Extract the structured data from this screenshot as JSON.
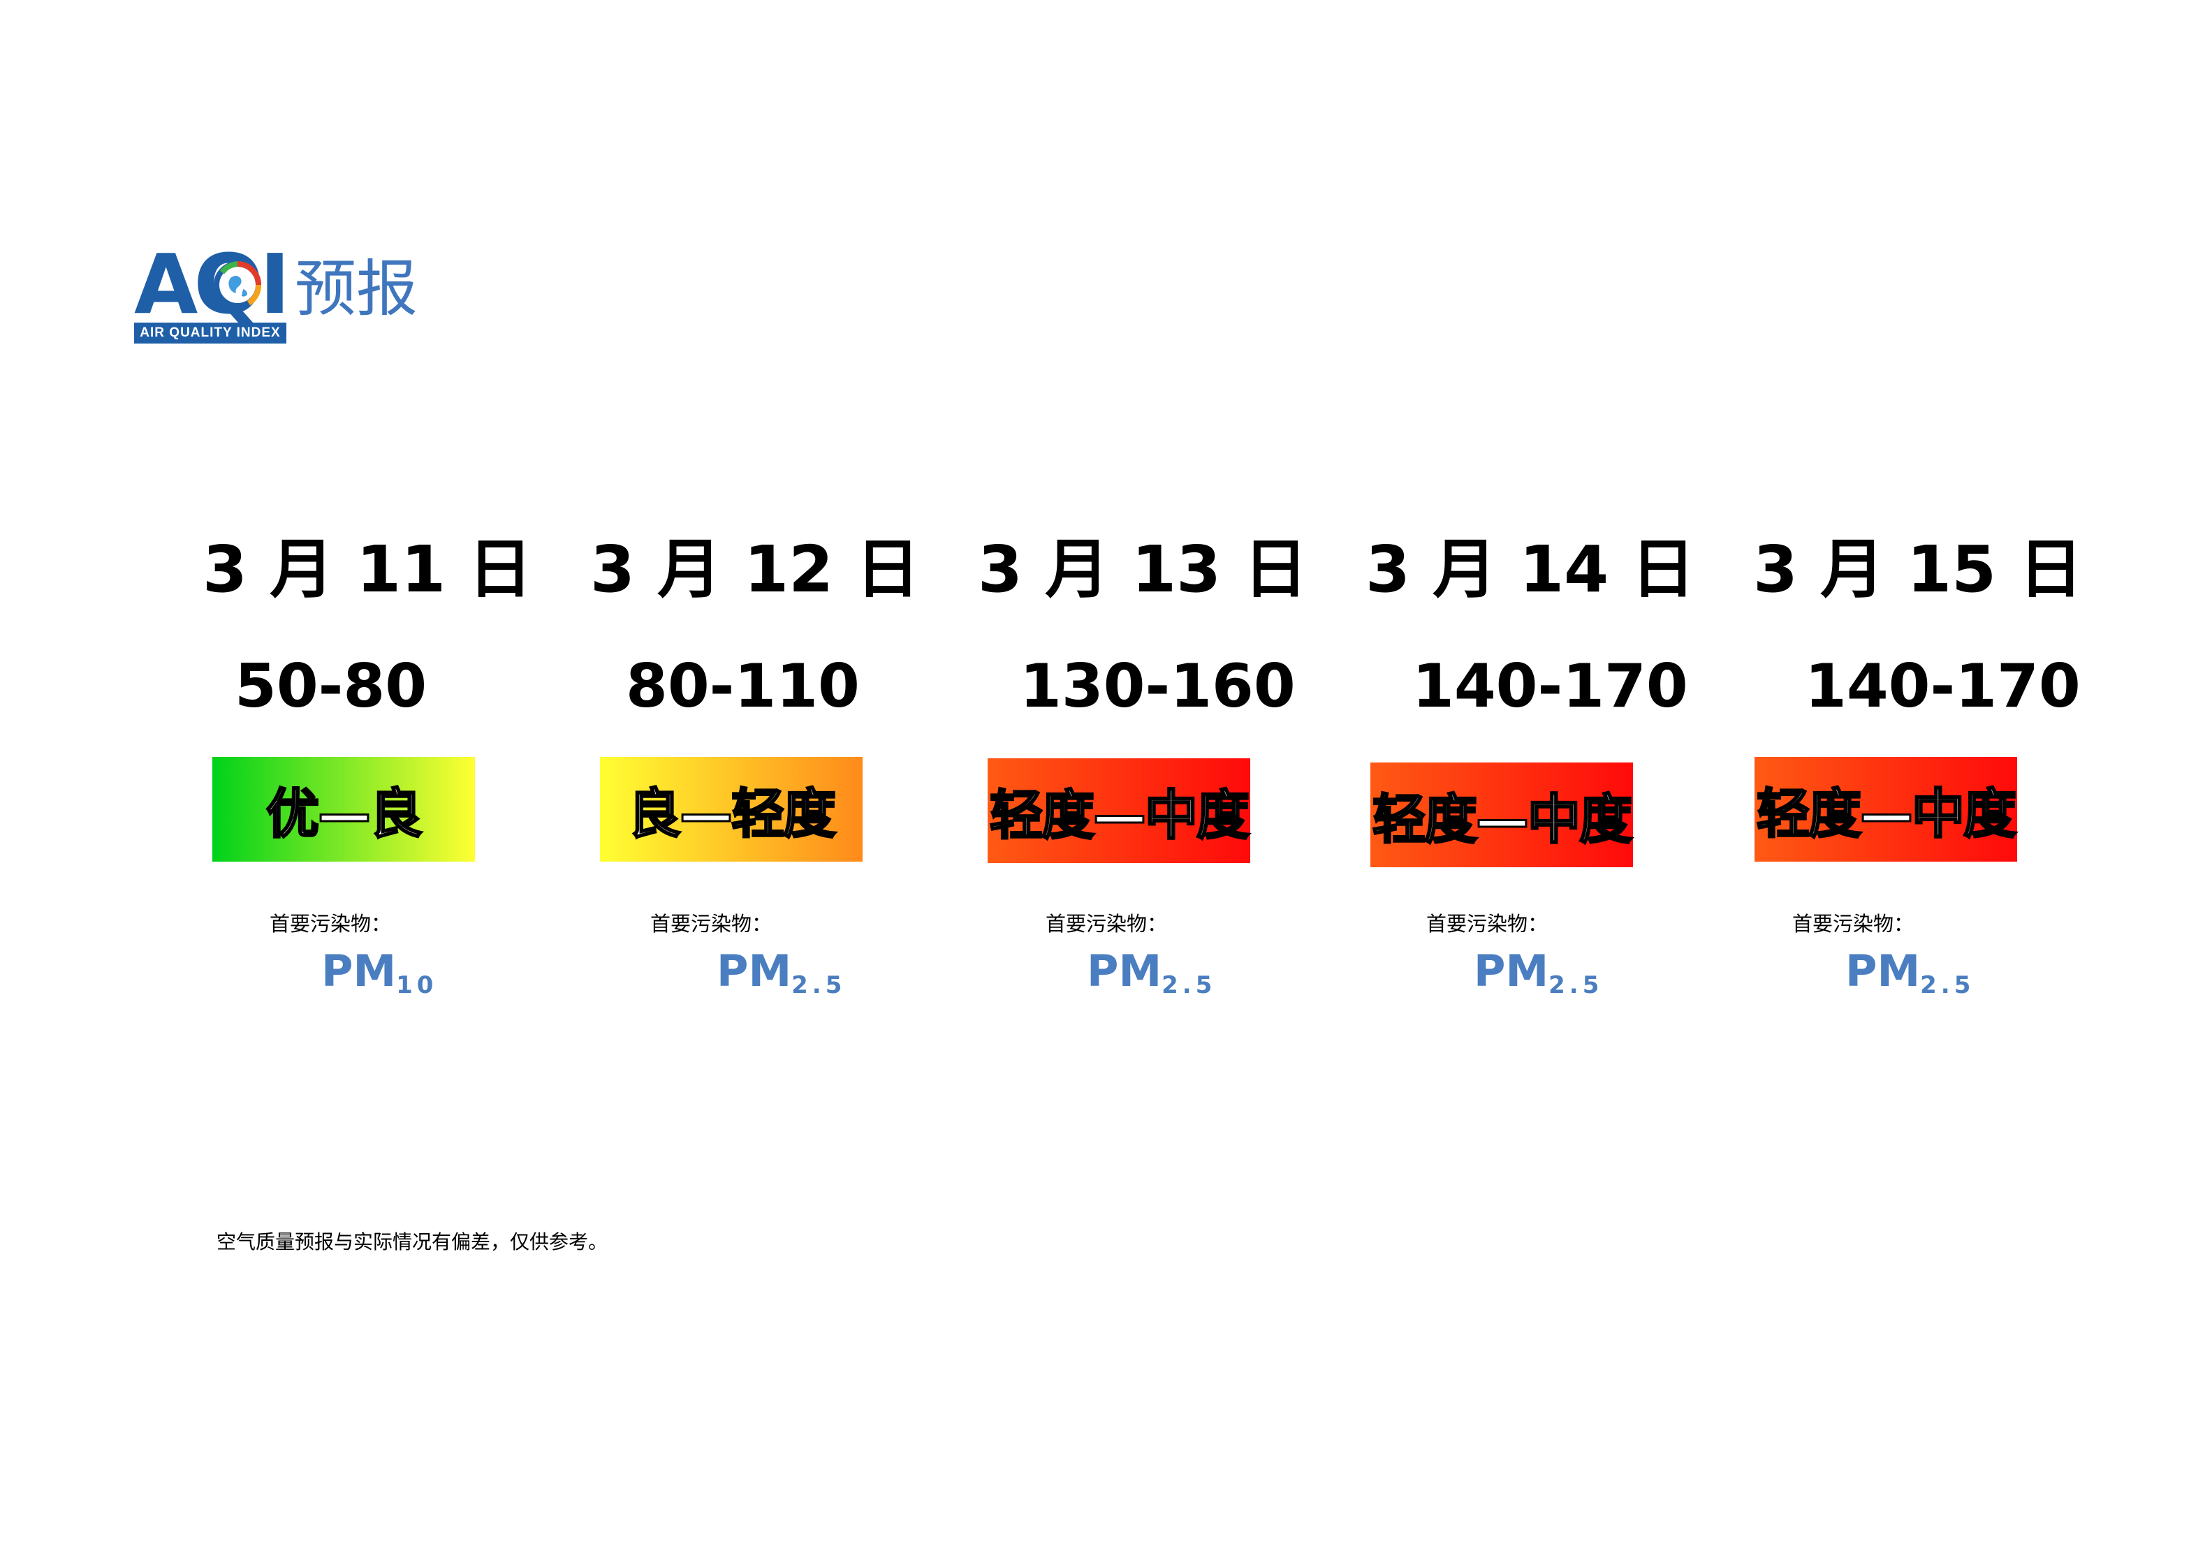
{
  "header": {
    "logo_letters": "AQI",
    "logo_band_text": "AIR QUALITY INDEX",
    "title": "预报"
  },
  "forecast": [
    {
      "date": "3 月 11 日",
      "range": "50-80",
      "level": "优—良",
      "pollutant_label": "首要污染物：",
      "pollutant_main": "PM",
      "pollutant_sub": "10"
    },
    {
      "date": "3 月 12 日",
      "range": "80-110",
      "level": "良—轻度",
      "pollutant_label": "首要污染物：",
      "pollutant_main": "PM",
      "pollutant_sub": "2.5"
    },
    {
      "date": "3 月 13 日",
      "range": "130-160",
      "level": "轻度—中度",
      "pollutant_label": "首要污染物：",
      "pollutant_main": "PM",
      "pollutant_sub": "2.5"
    },
    {
      "date": "3 月 14 日",
      "range": "140-170",
      "level": "轻度—中度",
      "pollutant_label": "首要污染物：",
      "pollutant_main": "PM",
      "pollutant_sub": "2.5"
    },
    {
      "date": "3 月 15 日",
      "range": "140-170",
      "level": "轻度—中度",
      "pollutant_label": "首要污染物：",
      "pollutant_main": "PM",
      "pollutant_sub": "2.5"
    }
  ],
  "level_colors": {
    "good_moderate": [
      "#00d21a",
      "#ffff33"
    ],
    "moderate_light": [
      "#ffff33",
      "#ff8a1a"
    ],
    "light_medium": [
      "#ff5a14",
      "#ff0a0a"
    ]
  },
  "disclaimer": "空气质量预报与实际情况有偏差，仅供参考。"
}
